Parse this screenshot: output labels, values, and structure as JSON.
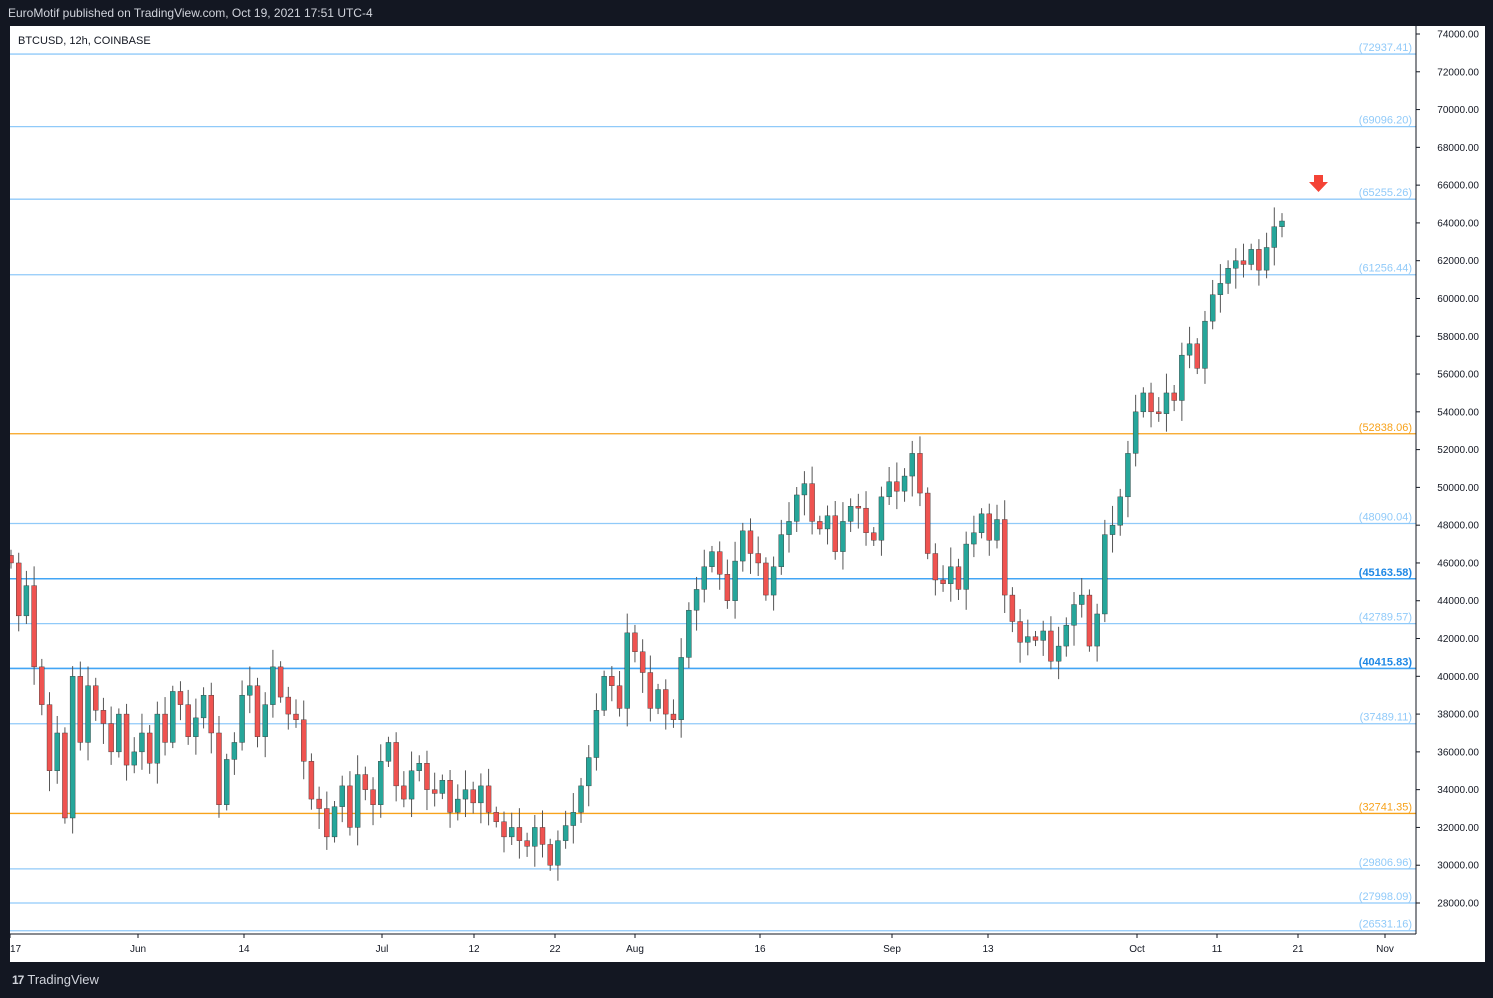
{
  "header": {
    "publisher_text": "EuroMotif published on TradingView.com, Oct 19, 2021 17:51 UTC-4"
  },
  "chart": {
    "symbol_text": "BTCUSD, 12h, COINBASE"
  },
  "footer": {
    "brand": "TradingView",
    "brand_mark": "17"
  },
  "colors": {
    "background_dark": "#131722",
    "bull": "#26a69a",
    "bear": "#ef5350",
    "level_blue": "#90caf9",
    "level_blue_strong": "#42a5f5",
    "level_orange": "#f7a21b",
    "arrow": "#f44336"
  },
  "chart_data": {
    "type": "candlestick",
    "symbol": "BTCUSD",
    "interval": "12h",
    "exchange": "COINBASE",
    "ylim": [
      26000,
      74500
    ],
    "y_ticks": [
      "74000.00",
      "72000.00",
      "70000.00",
      "68000.00",
      "66000.00",
      "64000.00",
      "62000.00",
      "60000.00",
      "58000.00",
      "56000.00",
      "54000.00",
      "52000.00",
      "50000.00",
      "48000.00",
      "46000.00",
      "44000.00",
      "42000.00",
      "40000.00",
      "38000.00",
      "36000.00",
      "34000.00",
      "32000.00",
      "30000.00",
      "28000.00"
    ],
    "x_ticks": [
      "17",
      "Jun",
      "14",
      "Jul",
      "12",
      "22",
      "Aug",
      "16",
      "Sep",
      "13",
      "Oct",
      "11",
      "21",
      "Nov"
    ],
    "levels": [
      {
        "value": 72937.41,
        "label": "(72937.41)",
        "color": "#90caf9"
      },
      {
        "value": 69096.2,
        "label": "(69096.20)",
        "color": "#90caf9"
      },
      {
        "value": 65255.26,
        "label": "(65255.26)",
        "color": "#90caf9"
      },
      {
        "value": 61256.44,
        "label": "(61256.44)",
        "color": "#90caf9"
      },
      {
        "value": 52838.06,
        "label": "(52838.06)",
        "color": "#f7a21b"
      },
      {
        "value": 48090.04,
        "label": "(48090.04)",
        "color": "#90caf9"
      },
      {
        "value": 45163.58,
        "label": "(45163.58)",
        "color": "#42a5f5"
      },
      {
        "value": 42789.57,
        "label": "(42789.57)",
        "color": "#90caf9"
      },
      {
        "value": 40415.83,
        "label": "(40415.83)",
        "color": "#42a5f5"
      },
      {
        "value": 37489.11,
        "label": "(37489.11)",
        "color": "#90caf9"
      },
      {
        "value": 32741.35,
        "label": "(32741.35)",
        "color": "#f7a21b"
      },
      {
        "value": 29806.96,
        "label": "(29806.96)",
        "color": "#90caf9"
      },
      {
        "value": 27998.09,
        "label": "(27998.09)",
        "color": "#90caf9"
      },
      {
        "value": 26531.16,
        "label": "(26531.16)",
        "color": "#90caf9"
      }
    ],
    "path_close": [
      46000,
      43200,
      44800,
      40500,
      38500,
      35000,
      37000,
      32500,
      40000,
      36500,
      39500,
      38200,
      37500,
      36000,
      38000,
      35300,
      36000,
      37000,
      35400,
      38000,
      36500,
      39200,
      38500,
      36800,
      37800,
      39000,
      37000,
      33200,
      35600,
      36500,
      39000,
      39500,
      36800,
      38500,
      40500,
      38900,
      38000,
      37700,
      35500,
      33500,
      33000,
      31500,
      33100,
      34200,
      32000,
      34800,
      34000,
      33200,
      35500,
      36500,
      34200,
      33500,
      35000,
      35400,
      34000,
      33800,
      34500,
      32800,
      33500,
      34000,
      33300,
      34200,
      32800,
      32300,
      31500,
      32000,
      31300,
      31000,
      32000,
      31100,
      30000,
      31300,
      32100,
      32800,
      34200,
      35700,
      38200,
      40000,
      39500,
      38300,
      42300,
      41300,
      40200,
      38300,
      39300,
      38000,
      37700,
      41000,
      43500,
      44600,
      45800,
      46600,
      45400,
      44000,
      46100,
      47700,
      46500,
      46000,
      44300,
      45800,
      47500,
      48200,
      49600,
      50200,
      48200,
      47800,
      48500,
      46600,
      48200,
      49000,
      48900,
      47600,
      47200,
      49500,
      50300,
      49800,
      50600,
      51800,
      49700,
      46500,
      45100,
      44900,
      45800,
      44600,
      47000,
      47600,
      48600,
      47200,
      48300,
      44300,
      42900,
      41800,
      42100,
      41900,
      42400,
      40800,
      41600,
      42700,
      43800,
      44300,
      41600,
      43300,
      47500,
      48000,
      49500,
      51800,
      54000,
      55000,
      54000,
      53900,
      55000,
      54600,
      57000,
      57600,
      56300,
      58800,
      60200,
      60800,
      61600,
      62000,
      61800,
      62600,
      61500,
      62700,
      63800,
      64100
    ],
    "reference_arrow": {
      "direction": "down",
      "color": "#f44336"
    }
  }
}
